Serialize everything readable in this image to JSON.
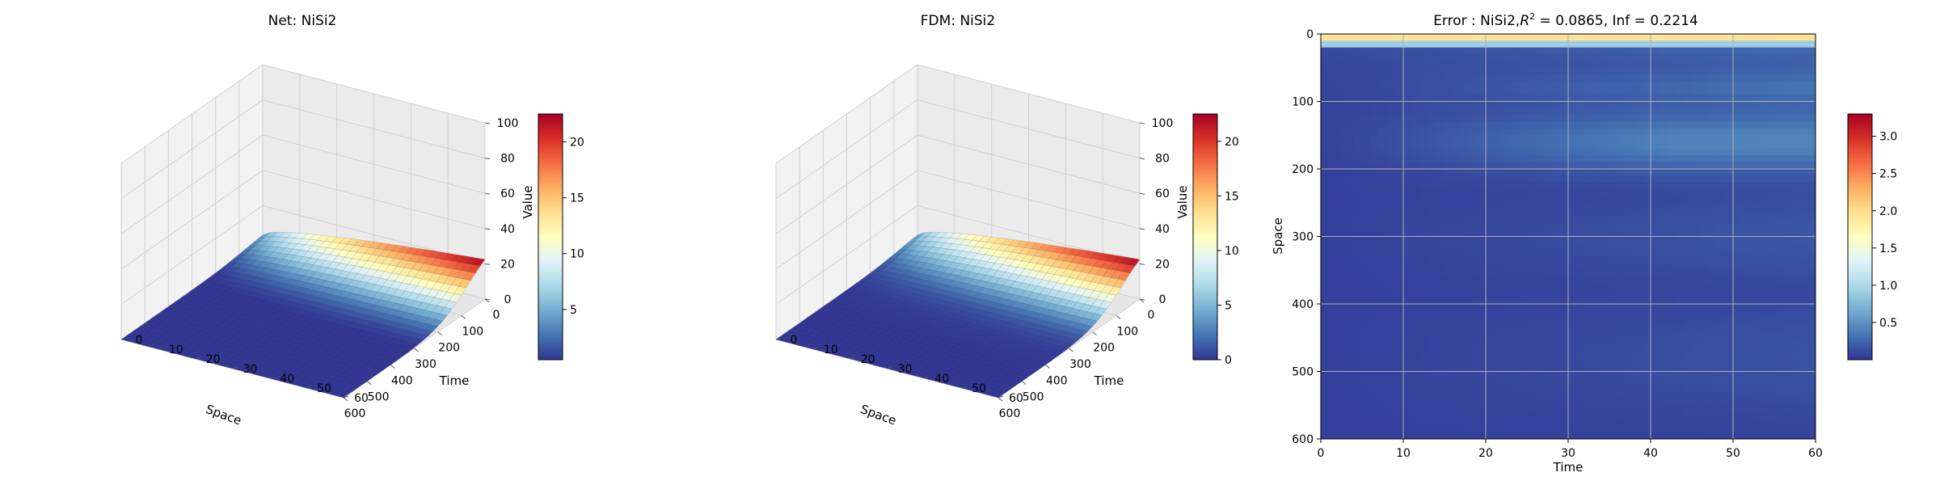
{
  "chart_data": [
    {
      "type": "surface3d",
      "title": "Net: NiSi2",
      "xlabel": "Space",
      "ylabel": "Time",
      "zlabel": "Value",
      "x_ticks": [
        0,
        100,
        200,
        300,
        400,
        500,
        600
      ],
      "y_ticks": [
        0,
        10,
        20,
        30,
        40,
        50,
        60
      ],
      "z_ticks": [
        0,
        20,
        40,
        60,
        80,
        100
      ],
      "xlim": [
        0,
        600
      ],
      "ylim": [
        0,
        60
      ],
      "zlim": [
        0,
        100
      ],
      "peak": {
        "space": 0,
        "time": 60,
        "value": 22.5
      },
      "colorbar": {
        "ticks": [
          5,
          10,
          15,
          20
        ],
        "range": [
          0.5,
          22.5
        ],
        "colormap": "RdYlBu_r"
      }
    },
    {
      "type": "surface3d",
      "title": "FDM: NiSi2",
      "xlabel": "Space",
      "ylabel": "Time",
      "zlabel": "Value",
      "x_ticks": [
        0,
        100,
        200,
        300,
        400,
        500,
        600
      ],
      "y_ticks": [
        0,
        10,
        20,
        30,
        40,
        50,
        60
      ],
      "z_ticks": [
        0,
        20,
        40,
        60,
        80,
        100
      ],
      "xlim": [
        0,
        600
      ],
      "ylim": [
        0,
        60
      ],
      "zlim": [
        0,
        100
      ],
      "peak": {
        "space": 0,
        "time": 60,
        "value": 22.5
      },
      "colorbar": {
        "ticks": [
          0,
          5,
          10,
          15,
          20
        ],
        "range": [
          0,
          22.5
        ],
        "colormap": "RdYlBu_r"
      }
    },
    {
      "type": "heatmap",
      "title_prefix": "Error : NiSi2,",
      "title_r": "R",
      "title_sup": "2",
      "title_suffix": " = 0.0865, Inf = 0.2214",
      "xlabel": "Time",
      "ylabel": "Space",
      "x_ticks": [
        0,
        10,
        20,
        30,
        40,
        50,
        60
      ],
      "y_ticks": [
        0,
        100,
        200,
        300,
        400,
        500,
        600
      ],
      "xlim": [
        0,
        60
      ],
      "ylim": [
        600,
        0
      ],
      "grid": true,
      "colorbar": {
        "ticks": [
          0.5,
          1.0,
          1.5,
          2.0,
          2.5,
          3.0
        ],
        "range": [
          0.0,
          3.3
        ],
        "colormap": "RdYlBu_r"
      }
    }
  ]
}
